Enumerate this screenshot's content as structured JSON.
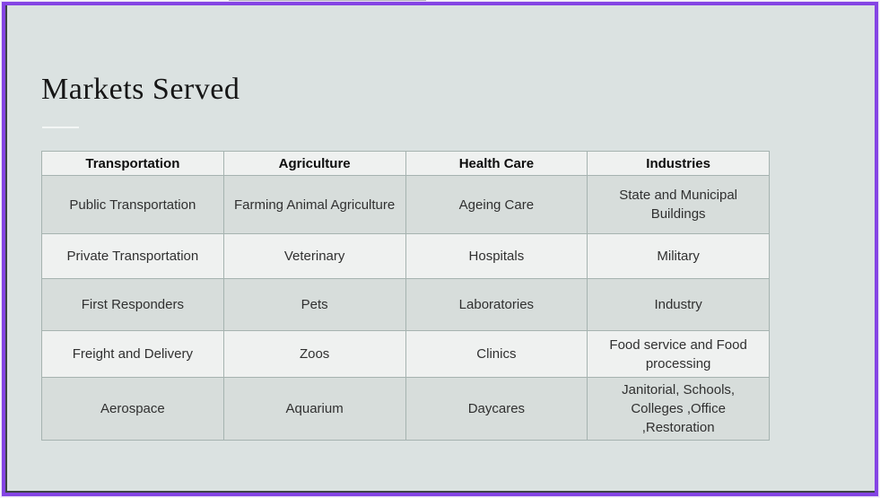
{
  "slide": {
    "title": "Markets Served",
    "table": {
      "headers": [
        "Transportation",
        "Agriculture",
        "Health Care",
        "Industries"
      ],
      "rows": [
        [
          "Public Transportation",
          "Farming Animal Agriculture",
          "Ageing Care",
          "State and Municipal Buildings"
        ],
        [
          "Private Transportation",
          "Veterinary",
          "Hospitals",
          "Military"
        ],
        [
          "First Responders",
          "Pets",
          "Laboratories",
          "Industry"
        ],
        [
          "Freight and Delivery",
          "Zoos",
          "Clinics",
          "Food service and Food processing"
        ],
        [
          "Aerospace",
          "Aquarium",
          "Daycares",
          "Janitorial, Schools, Colleges ,Office ,Restoration"
        ]
      ]
    }
  },
  "colors": {
    "selection_border": "#8444e4",
    "slide_background": "#dbe2e1",
    "row_light": "#eff1f0",
    "row_dark": "#d7dddb",
    "cell_border": "#a6b3b0",
    "highlight_text": "#8f7b33"
  }
}
